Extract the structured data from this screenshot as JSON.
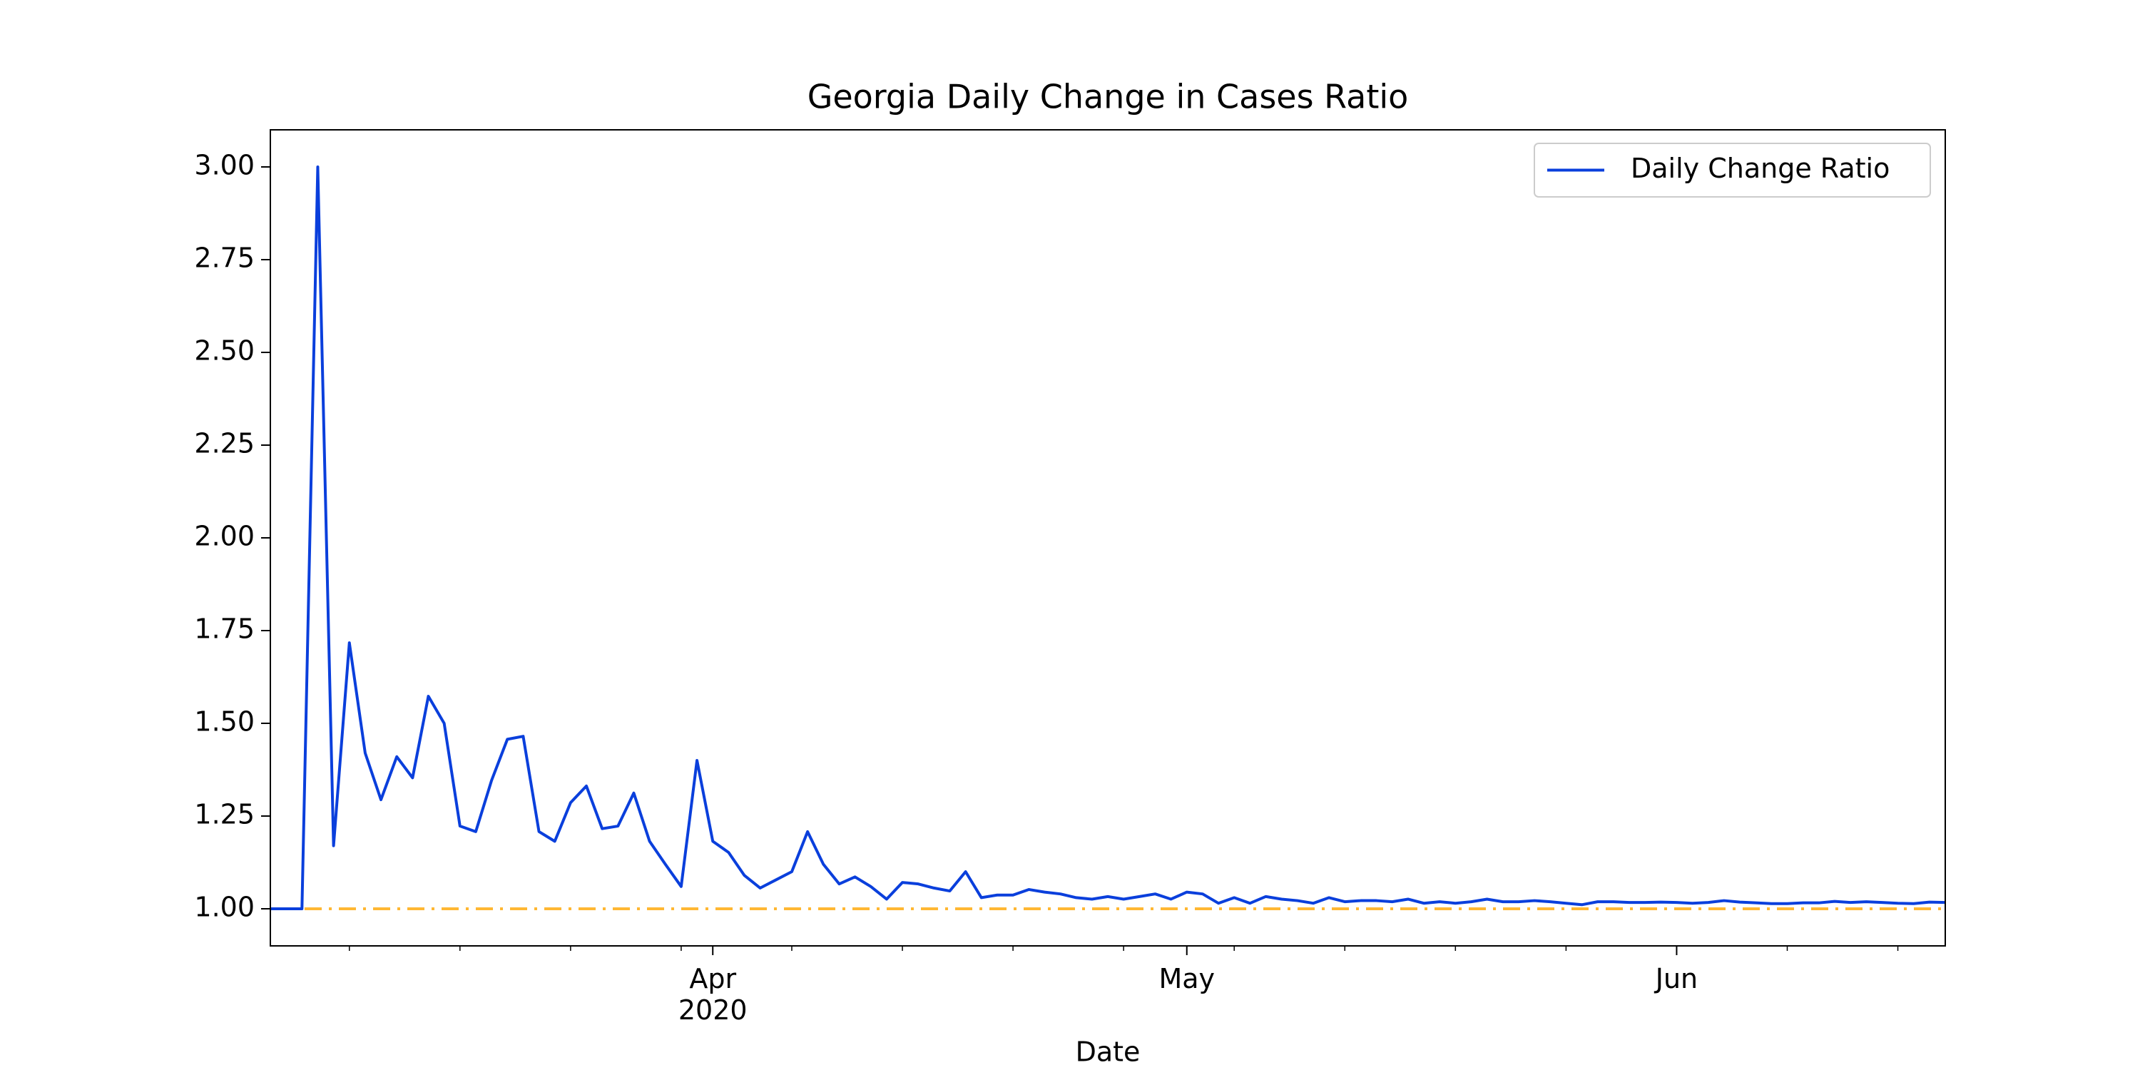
{
  "chart_data": {
    "type": "line",
    "title": "Georgia Daily Change in Cases Ratio",
    "xlabel": "Date",
    "x": [
      "2020-03-04",
      "2020-03-05",
      "2020-03-06",
      "2020-03-07",
      "2020-03-08",
      "2020-03-09",
      "2020-03-10",
      "2020-03-11",
      "2020-03-12",
      "2020-03-13",
      "2020-03-14",
      "2020-03-15",
      "2020-03-16",
      "2020-03-17",
      "2020-03-18",
      "2020-03-19",
      "2020-03-20",
      "2020-03-21",
      "2020-03-22",
      "2020-03-23",
      "2020-03-24",
      "2020-03-25",
      "2020-03-26",
      "2020-03-27",
      "2020-03-28",
      "2020-03-29",
      "2020-03-30",
      "2020-03-31",
      "2020-04-01",
      "2020-04-02",
      "2020-04-03",
      "2020-04-04",
      "2020-04-05",
      "2020-04-06",
      "2020-04-07",
      "2020-04-08",
      "2020-04-09",
      "2020-04-10",
      "2020-04-11",
      "2020-04-12",
      "2020-04-13",
      "2020-04-14",
      "2020-04-15",
      "2020-04-16",
      "2020-04-17",
      "2020-04-18",
      "2020-04-19",
      "2020-04-20",
      "2020-04-21",
      "2020-04-22",
      "2020-04-23",
      "2020-04-24",
      "2020-04-25",
      "2020-04-26",
      "2020-04-27",
      "2020-04-28",
      "2020-04-29",
      "2020-04-30",
      "2020-05-01",
      "2020-05-02",
      "2020-05-03",
      "2020-05-04",
      "2020-05-05",
      "2020-05-06",
      "2020-05-07",
      "2020-05-08",
      "2020-05-09",
      "2020-05-10",
      "2020-05-11",
      "2020-05-12",
      "2020-05-13",
      "2020-05-14",
      "2020-05-15",
      "2020-05-16",
      "2020-05-17",
      "2020-05-18",
      "2020-05-19",
      "2020-05-20",
      "2020-05-21",
      "2020-05-22",
      "2020-05-23",
      "2020-05-24",
      "2020-05-25",
      "2020-05-26",
      "2020-05-27",
      "2020-05-28",
      "2020-05-29",
      "2020-05-30",
      "2020-05-31",
      "2020-06-01",
      "2020-06-02",
      "2020-06-03",
      "2020-06-04",
      "2020-06-05",
      "2020-06-06",
      "2020-06-07",
      "2020-06-08",
      "2020-06-09",
      "2020-06-10",
      "2020-06-11",
      "2020-06-12",
      "2020-06-13",
      "2020-06-14",
      "2020-06-15",
      "2020-06-16",
      "2020-06-17",
      "2020-06-18"
    ],
    "series": [
      {
        "name": "Daily Change Ratio",
        "color": "#0a3fdc",
        "values": [
          1.0,
          1.0,
          1.0,
          3.0,
          1.17,
          1.717,
          1.42,
          1.294,
          1.41,
          1.353,
          1.573,
          1.5,
          1.223,
          1.208,
          1.346,
          1.457,
          1.465,
          1.208,
          1.182,
          1.286,
          1.331,
          1.216,
          1.223,
          1.312,
          1.182,
          1.12,
          1.06,
          1.4,
          1.182,
          1.152,
          1.09,
          1.056,
          1.078,
          1.1,
          1.208,
          1.12,
          1.067,
          1.086,
          1.06,
          1.026,
          1.071,
          1.067,
          1.056,
          1.048,
          1.1,
          1.03,
          1.037,
          1.037,
          1.052,
          1.045,
          1.04,
          1.03,
          1.026,
          1.033,
          1.026,
          1.033,
          1.04,
          1.026,
          1.045,
          1.04,
          1.015,
          1.03,
          1.015,
          1.033,
          1.026,
          1.022,
          1.015,
          1.03,
          1.019,
          1.022,
          1.022,
          1.019,
          1.026,
          1.015,
          1.019,
          1.015,
          1.019,
          1.026,
          1.019,
          1.019,
          1.022,
          1.019,
          1.015,
          1.011,
          1.019,
          1.019,
          1.017,
          1.017,
          1.018,
          1.017,
          1.015,
          1.017,
          1.022,
          1.018,
          1.016,
          1.014,
          1.014,
          1.016,
          1.016,
          1.02,
          1.017,
          1.019,
          1.017,
          1.015,
          1.014,
          1.018,
          1.017
        ]
      }
    ],
    "hline": {
      "value": 1,
      "color": "#ffb733",
      "style": "dashdot"
    },
    "xlim": [
      "2020-03-04",
      "2020-06-18"
    ],
    "xticks": [
      {
        "value": "2020-04-01",
        "label": "Apr\n2020"
      },
      {
        "value": "2020-05-01",
        "label": "May"
      },
      {
        "value": "2020-06-01",
        "label": "Jun"
      }
    ],
    "xminor_ticks": [
      "2020-03-09",
      "2020-03-16",
      "2020-03-23",
      "2020-03-30",
      "2020-04-06",
      "2020-04-13",
      "2020-04-20",
      "2020-04-27",
      "2020-05-04",
      "2020-05-11",
      "2020-05-18",
      "2020-05-25",
      "2020-06-08",
      "2020-06-15"
    ],
    "ylim": [
      0.9,
      3.1
    ],
    "yticks": [
      {
        "value": 1.0,
        "label": "1.00"
      },
      {
        "value": 1.25,
        "label": "1.25"
      },
      {
        "value": 1.5,
        "label": "1.50"
      },
      {
        "value": 1.75,
        "label": "1.75"
      },
      {
        "value": 2.0,
        "label": "2.00"
      },
      {
        "value": 2.25,
        "label": "2.25"
      },
      {
        "value": 2.5,
        "label": "2.50"
      },
      {
        "value": 2.75,
        "label": "2.75"
      },
      {
        "value": 3.0,
        "label": "3.00"
      }
    ],
    "legend": "upper right"
  }
}
